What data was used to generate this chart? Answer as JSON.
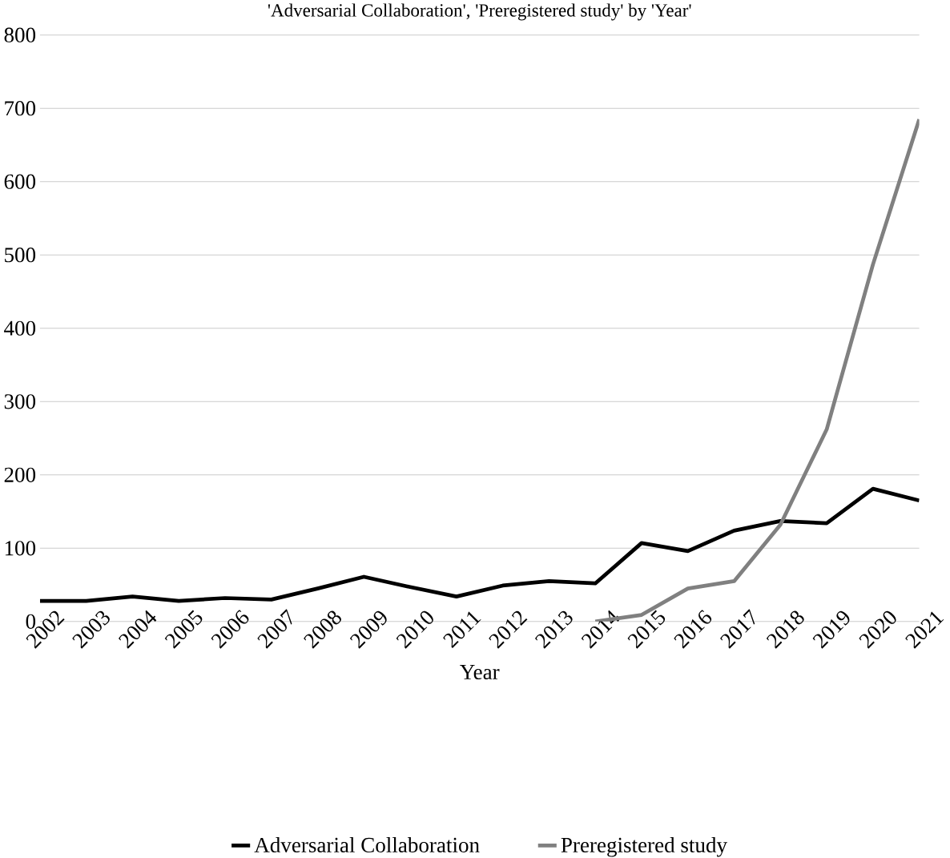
{
  "chart_data": {
    "type": "line",
    "title": "'Adversarial Collaboration', 'Preregistered study' by 'Year'",
    "xlabel": "Year",
    "categories": [
      "2002",
      "2003",
      "2004",
      "2005",
      "2006",
      "2007",
      "2008",
      "2009",
      "2010",
      "2011",
      "2012",
      "2013",
      "2014",
      "2015",
      "2016",
      "2017",
      "2018",
      "2019",
      "2020",
      "2021"
    ],
    "series": [
      {
        "name": "Adversarial Collaboration",
        "color": "#000000",
        "values": [
          28,
          28,
          34,
          28,
          32,
          30,
          45,
          61,
          47,
          34,
          49,
          55,
          52,
          107,
          96,
          124,
          137,
          134,
          181,
          165
        ]
      },
      {
        "name": "Preregistered study",
        "color": "#808080",
        "values": [
          null,
          null,
          null,
          null,
          null,
          null,
          null,
          null,
          null,
          null,
          null,
          null,
          0,
          9,
          45,
          55,
          132,
          262,
          487,
          685
        ]
      }
    ],
    "ylim": [
      0,
      800
    ],
    "yticks": [
      0,
      100,
      200,
      300,
      400,
      500,
      600,
      700,
      800
    ],
    "grid": "y",
    "legend": "bottom"
  }
}
